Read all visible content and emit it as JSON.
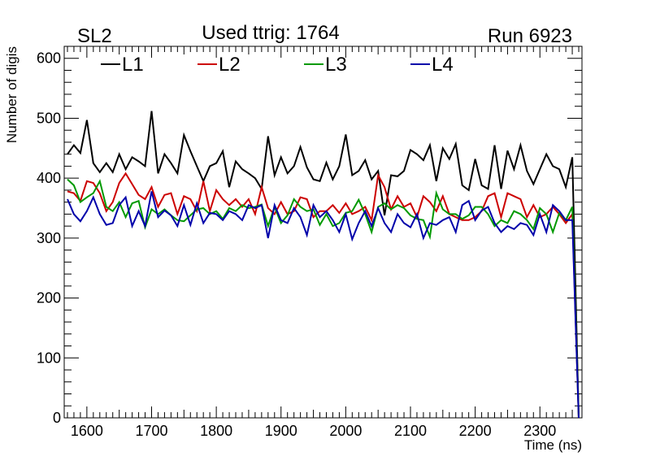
{
  "header": {
    "left": "SL2",
    "center": "Used ttrig: 1764",
    "right": "Run 6923"
  },
  "chart_data": {
    "type": "line",
    "title": "Used ttrig: 1764",
    "xlabel": "Time (ns)",
    "ylabel": "Number of digis",
    "xlim": [
      1565,
      2365
    ],
    "ylim": [
      0,
      620
    ],
    "xticks": [
      1600,
      1700,
      1800,
      1900,
      2000,
      2100,
      2200,
      2300
    ],
    "yticks": [
      0,
      100,
      200,
      300,
      400,
      500,
      600
    ],
    "grid": false,
    "legend_position": "top",
    "x": [
      1570,
      1580,
      1590,
      1600,
      1610,
      1620,
      1630,
      1640,
      1650,
      1660,
      1670,
      1680,
      1690,
      1700,
      1710,
      1720,
      1730,
      1740,
      1750,
      1760,
      1770,
      1780,
      1790,
      1800,
      1810,
      1820,
      1830,
      1840,
      1850,
      1860,
      1870,
      1880,
      1890,
      1900,
      1910,
      1920,
      1930,
      1940,
      1950,
      1960,
      1970,
      1980,
      1990,
      2000,
      2010,
      2020,
      2030,
      2040,
      2050,
      2060,
      2070,
      2080,
      2090,
      2100,
      2110,
      2120,
      2130,
      2140,
      2150,
      2160,
      2170,
      2180,
      2190,
      2200,
      2210,
      2220,
      2230,
      2240,
      2250,
      2260,
      2270,
      2280,
      2290,
      2300,
      2310,
      2320,
      2330,
      2340,
      2350,
      2360
    ],
    "series": [
      {
        "name": "L1",
        "color": "#000000",
        "values": [
          440,
          455,
          442,
          497,
          425,
          410,
          425,
          410,
          440,
          415,
          435,
          428,
          420,
          512,
          408,
          440,
          425,
          408,
          472,
          445,
          420,
          395,
          420,
          425,
          445,
          385,
          428,
          415,
          408,
          400,
          382,
          470,
          405,
          435,
          408,
          420,
          452,
          418,
          398,
          395,
          426,
          398,
          420,
          473,
          405,
          412,
          430,
          398,
          412,
          338,
          405,
          403,
          412,
          447,
          440,
          430,
          455,
          395,
          450,
          432,
          457,
          388,
          380,
          432,
          388,
          382,
          455,
          382,
          446,
          415,
          455,
          412,
          390,
          415,
          440,
          420,
          415,
          385,
          435,
          0
        ]
      },
      {
        "name": "L2",
        "color": "#cc0000",
        "values": [
          378,
          375,
          362,
          395,
          392,
          375,
          345,
          360,
          392,
          408,
          390,
          372,
          365,
          385,
          352,
          372,
          375,
          340,
          370,
          365,
          345,
          395,
          345,
          380,
          365,
          355,
          365,
          352,
          365,
          340,
          385,
          350,
          340,
          360,
          340,
          345,
          368,
          365,
          335,
          345,
          345,
          355,
          342,
          358,
          340,
          345,
          352,
          330,
          405,
          385,
          348,
          370,
          352,
          358,
          335,
          370,
          360,
          345,
          370,
          340,
          335,
          330,
          330,
          335,
          345,
          370,
          375,
          335,
          375,
          370,
          365,
          335,
          355,
          335,
          340,
          352,
          340,
          325,
          340,
          0
        ]
      },
      {
        "name": "L3",
        "color": "#009900",
        "values": [
          398,
          388,
          360,
          368,
          375,
          395,
          352,
          345,
          360,
          335,
          358,
          362,
          318,
          348,
          340,
          348,
          338,
          330,
          328,
          338,
          348,
          350,
          340,
          345,
          332,
          350,
          345,
          355,
          350,
          352,
          356,
          320,
          352,
          325,
          338,
          365,
          352,
          345,
          348,
          322,
          340,
          320,
          325,
          342,
          345,
          364,
          340,
          310,
          352,
          358,
          348,
          355,
          350,
          338,
          332,
          330,
          302,
          375,
          348,
          340,
          340,
          332,
          338,
          352,
          352,
          340,
          320,
          330,
          325,
          345,
          340,
          330,
          315,
          350,
          340,
          310,
          342,
          330,
          352,
          0
        ]
      },
      {
        "name": "L4",
        "color": "#0000aa",
        "values": [
          365,
          340,
          328,
          345,
          368,
          340,
          322,
          325,
          355,
          368,
          320,
          345,
          320,
          378,
          335,
          346,
          338,
          320,
          355,
          322,
          358,
          325,
          342,
          340,
          330,
          345,
          340,
          330,
          355,
          350,
          355,
          300,
          355,
          330,
          325,
          350,
          335,
          305,
          355,
          335,
          345,
          330,
          310,
          340,
          298,
          325,
          345,
          320,
          350,
          325,
          310,
          340,
          325,
          318,
          340,
          300,
          325,
          322,
          330,
          335,
          310,
          355,
          362,
          330,
          346,
          352,
          325,
          310,
          320,
          315,
          325,
          322,
          305,
          340,
          310,
          355,
          345,
          330,
          330,
          0
        ]
      }
    ]
  }
}
